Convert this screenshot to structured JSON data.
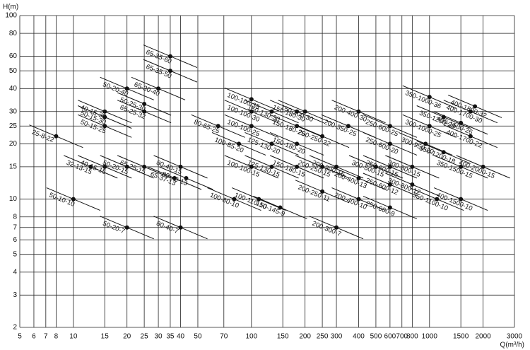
{
  "chart_data": {
    "type": "scatter",
    "x_label": "Q(m³/h)",
    "y_label": "H(m)",
    "log_x": true,
    "log_y": true,
    "grid": true,
    "color": "#111111",
    "xlim": [
      5,
      3000
    ],
    "ylim": [
      2,
      100
    ],
    "xticks": [
      5,
      6,
      7,
      8,
      10,
      15,
      20,
      25,
      30,
      35,
      40,
      50,
      70,
      100,
      150,
      200,
      250,
      300,
      400,
      500,
      600,
      700,
      800,
      1000,
      1500,
      2000,
      3000
    ],
    "yticks": [
      2,
      3,
      4,
      5,
      6,
      7,
      8,
      10,
      15,
      20,
      25,
      30,
      40,
      50,
      60,
      80,
      100
    ],
    "points": [
      {
        "label": "25-8-22",
        "x": 8,
        "y": 22
      },
      {
        "label": "32-13-15",
        "x": 12.5,
        "y": 15
      },
      {
        "label": "40-15-15",
        "x": 15,
        "y": 15
      },
      {
        "label": "50-10-10",
        "x": 10,
        "y": 10
      },
      {
        "label": "50-15-25",
        "x": 15,
        "y": 25
      },
      {
        "label": "40-15-30",
        "x": 15,
        "y": 30
      },
      {
        "label": "50-15-30",
        "x": 15,
        "y": 28
      },
      {
        "label": "50-20-40",
        "x": 20,
        "y": 40
      },
      {
        "label": "50-20-15",
        "x": 20,
        "y": 15
      },
      {
        "label": "50-20-7",
        "x": 20,
        "y": 7
      },
      {
        "label": "65-25-15",
        "x": 25,
        "y": 15
      },
      {
        "label": "50-25-30",
        "x": 25,
        "y": 33
      },
      {
        "label": "65-25-32",
        "x": 25,
        "y": 30
      },
      {
        "label": "65-30-40",
        "x": 30,
        "y": 40
      },
      {
        "label": "65-35-60",
        "x": 35,
        "y": 60
      },
      {
        "label": "65-35-50",
        "x": 35,
        "y": 50
      },
      {
        "label": "65-37-13",
        "x": 37,
        "y": 13
      },
      {
        "label": "80-40-15",
        "x": 40,
        "y": 15
      },
      {
        "label": "80-43-13",
        "x": 43,
        "y": 13
      },
      {
        "label": "80-40-7",
        "x": 40,
        "y": 7
      },
      {
        "label": "80-65-25",
        "x": 65,
        "y": 25
      },
      {
        "label": "100-85-20",
        "x": 85,
        "y": 20
      },
      {
        "label": "100-80-10",
        "x": 80,
        "y": 10
      },
      {
        "label": "100-100-35",
        "x": 100,
        "y": 35
      },
      {
        "label": "100-100-30",
        "x": 100,
        "y": 30
      },
      {
        "label": "100-100-25",
        "x": 100,
        "y": 25
      },
      {
        "label": "100-100-15",
        "x": 100,
        "y": 15
      },
      {
        "label": "100-110-10",
        "x": 110,
        "y": 10
      },
      {
        "label": "125-130-20",
        "x": 130,
        "y": 20
      },
      {
        "label": "125-130-15",
        "x": 130,
        "y": 15
      },
      {
        "label": "150-130-30",
        "x": 130,
        "y": 30
      },
      {
        "label": "150-180-30",
        "x": 180,
        "y": 30
      },
      {
        "label": "150-180-25",
        "x": 180,
        "y": 25
      },
      {
        "label": "150-180-20",
        "x": 180,
        "y": 20
      },
      {
        "label": "150-180-15",
        "x": 180,
        "y": 15
      },
      {
        "label": "150-145-9",
        "x": 145,
        "y": 9
      },
      {
        "label": "150-200-30",
        "x": 200,
        "y": 30
      },
      {
        "label": "200-250-22",
        "x": 250,
        "y": 22
      },
      {
        "label": "200-250-15",
        "x": 250,
        "y": 15
      },
      {
        "label": "200-250-11",
        "x": 250,
        "y": 11
      },
      {
        "label": "200-300-7",
        "x": 300,
        "y": 7
      },
      {
        "label": "200-300-15",
        "x": 300,
        "y": 15
      },
      {
        "label": "200-350-25",
        "x": 350,
        "y": 25
      },
      {
        "label": "200-400-30",
        "x": 400,
        "y": 30
      },
      {
        "label": "200-400-13",
        "x": 400,
        "y": 13
      },
      {
        "label": "200-400-10",
        "x": 400,
        "y": 10
      },
      {
        "label": "250-600-25",
        "x": 600,
        "y": 25
      },
      {
        "label": "250-600-20",
        "x": 600,
        "y": 20
      },
      {
        "label": "250-600-15",
        "x": 600,
        "y": 15
      },
      {
        "label": "250-600-12",
        "x": 600,
        "y": 12
      },
      {
        "label": "250-600-9",
        "x": 600,
        "y": 9
      },
      {
        "label": "300-500-15",
        "x": 500,
        "y": 15
      },
      {
        "label": "300-800-12",
        "x": 800,
        "y": 12
      },
      {
        "label": "300-800-15",
        "x": 800,
        "y": 15
      },
      {
        "label": "300-950-20",
        "x": 950,
        "y": 20
      },
      {
        "label": "300-1000-25",
        "x": 1000,
        "y": 25
      },
      {
        "label": "350-1000-36",
        "x": 1000,
        "y": 36
      },
      {
        "label": "350-1200-28",
        "x": 1200,
        "y": 28
      },
      {
        "label": "350-1200-18",
        "x": 1200,
        "y": 18
      },
      {
        "label": "350-1100-10",
        "x": 1100,
        "y": 10
      },
      {
        "label": "350-1500-15",
        "x": 1500,
        "y": 15
      },
      {
        "label": "400-1500-10",
        "x": 1500,
        "y": 10
      },
      {
        "label": "400-1500-26",
        "x": 1500,
        "y": 26
      },
      {
        "label": "400-1700-30",
        "x": 1700,
        "y": 30
      },
      {
        "label": "400-1800-32",
        "x": 1800,
        "y": 32
      },
      {
        "label": "400-1700-22",
        "x": 1700,
        "y": 22
      },
      {
        "label": "400-2000-15",
        "x": 2000,
        "y": 15
      }
    ]
  }
}
